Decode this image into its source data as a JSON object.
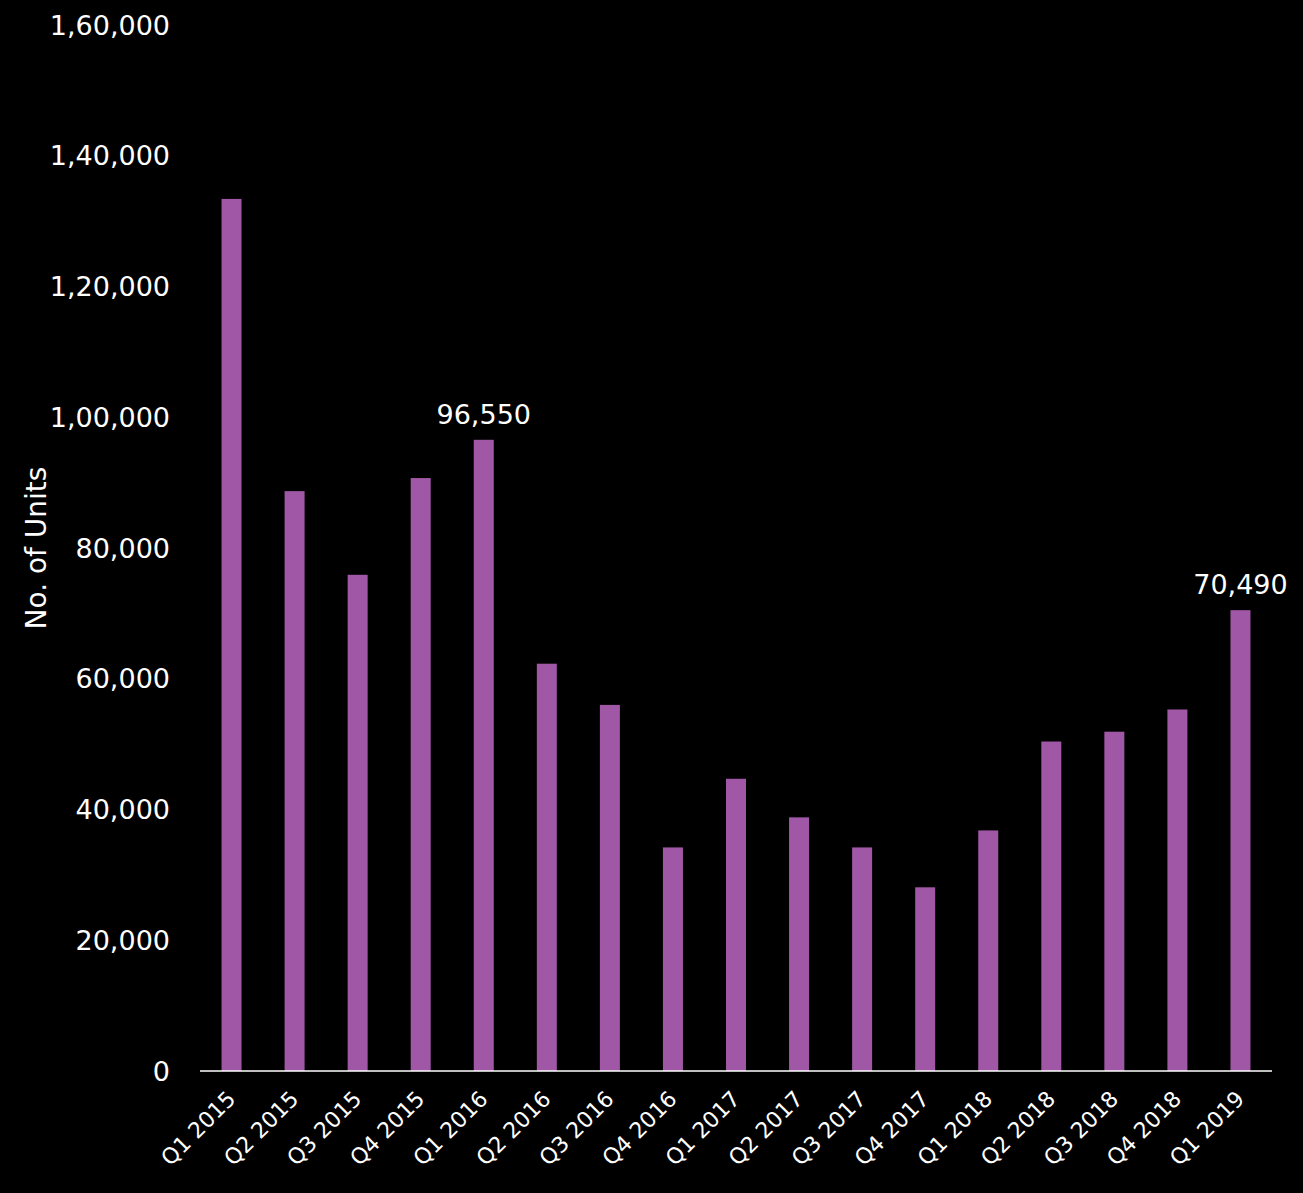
{
  "chart_data": {
    "type": "bar",
    "y_label": "No. of Units",
    "categories": [
      "Q1 2015",
      "Q2 2015",
      "Q3 2015",
      "Q4 2015",
      "Q1 2016",
      "Q2 2016",
      "Q3 2016",
      "Q4 2016",
      "Q1 2017",
      "Q2 2017",
      "Q3 2017",
      "Q4 2017",
      "Q1 2018",
      "Q2 2018",
      "Q3 2018",
      "Q4 2018",
      "Q1 2019"
    ],
    "values": [
      133400,
      88700,
      75900,
      90700,
      96550,
      62300,
      56000,
      34200,
      44700,
      38800,
      34200,
      28100,
      36800,
      50400,
      51900,
      55300,
      70490
    ],
    "value_labels": [
      null,
      null,
      null,
      null,
      "96,550",
      null,
      null,
      null,
      null,
      null,
      null,
      null,
      null,
      null,
      null,
      null,
      "70,490"
    ],
    "data_labels": true,
    "color": "#a057a6",
    "ylim": [
      0,
      160000
    ],
    "yticks": [
      0,
      {
        "value": 20000,
        "label": "20,000"
      },
      {
        "value": 40000,
        "label": "40,000"
      },
      {
        "value": 60000,
        "label": "60,000"
      },
      {
        "value": 80000,
        "label": "80,000"
      },
      {
        "value": 100000,
        "label": "1,00,000"
      },
      {
        "value": 120000,
        "label": "1,20,000"
      },
      {
        "value": 140000,
        "label": "1,40,000"
      },
      {
        "value": 160000,
        "label": "1,60,000"
      }
    ],
    "grid": false
  }
}
